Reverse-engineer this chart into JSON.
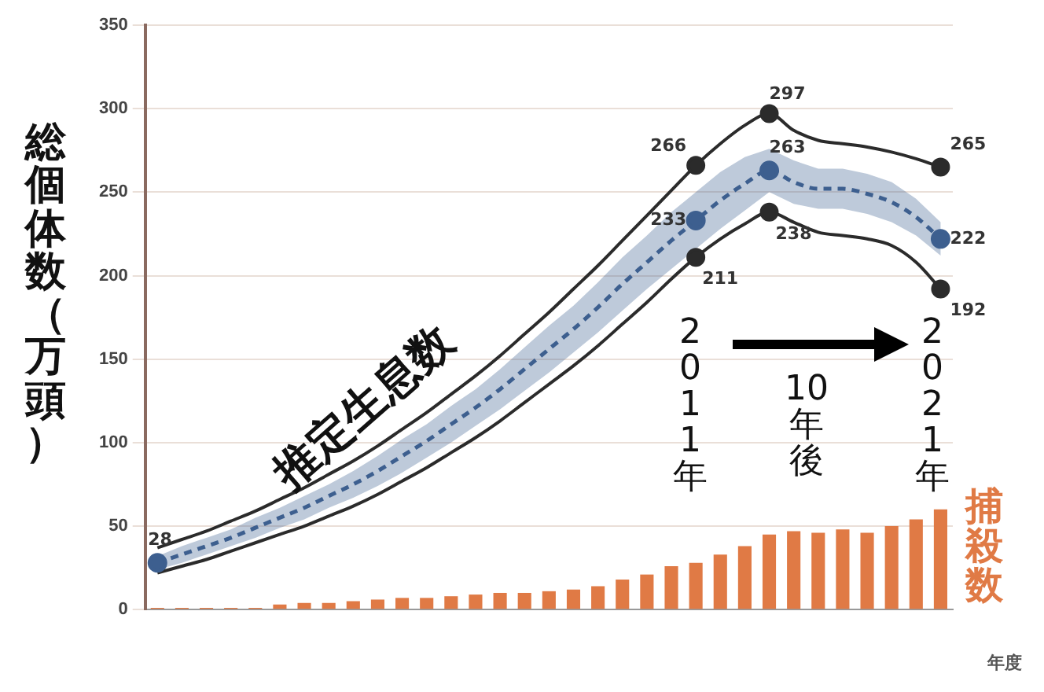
{
  "chart_data": {
    "type": "line",
    "ylabel": "総個体数（万頭）",
    "xlabel": "年度",
    "categories": [
      null,
      null,
      null,
      null,
      null,
      null,
      null,
      null,
      null,
      null,
      null,
      null,
      null,
      null,
      null,
      null,
      null,
      null,
      null,
      null,
      null,
      null,
      null,
      null,
      null,
      null,
      null,
      null,
      null,
      null,
      null,
      null,
      null
    ],
    "ylim": [
      0,
      350
    ],
    "yticks": [
      0,
      50,
      100,
      150,
      200,
      250,
      300,
      350
    ],
    "grid": "y",
    "series": [
      {
        "type": "bar",
        "name": "捕殺数",
        "color": "#e07a45",
        "values": [
          1,
          1,
          1,
          1,
          1,
          3,
          4,
          4,
          5,
          6,
          7,
          7,
          8,
          9,
          10,
          10,
          11,
          12,
          14,
          18,
          21,
          26,
          28,
          33,
          38,
          45,
          47,
          46,
          48,
          46,
          50,
          54,
          60
        ]
      },
      {
        "color": "#2b2b2b",
        "values": [
          37,
          42,
          47,
          53,
          59,
          66,
          73,
          81,
          89,
          98,
          108,
          118,
          129,
          140,
          152,
          165,
          178,
          192,
          206,
          221,
          236,
          251,
          266,
          279,
          290,
          297,
          287,
          281,
          279,
          277,
          274,
          270,
          265
        ],
        "value_labels": [
          null,
          null,
          null,
          null,
          null,
          null,
          null,
          null,
          null,
          null,
          null,
          null,
          null,
          null,
          null,
          null,
          null,
          null,
          null,
          null,
          null,
          null,
          "266",
          null,
          null,
          "297",
          null,
          null,
          null,
          null,
          null,
          null,
          "265"
        ]
      },
      {
        "name": "推定生息数",
        "color": "#3d5f8f",
        "line_style": "dashed",
        "values": [
          28,
          33,
          38,
          43,
          49,
          55,
          61,
          68,
          75,
          83,
          92,
          101,
          111,
          121,
          132,
          144,
          156,
          168,
          181,
          195,
          208,
          221,
          233,
          245,
          255,
          263,
          256,
          252,
          252,
          249,
          244,
          235,
          222
        ],
        "lower": [
          24,
          28,
          33,
          38,
          43,
          49,
          54,
          61,
          67,
          74,
          82,
          91,
          100,
          110,
          120,
          131,
          142,
          154,
          166,
          179,
          192,
          204,
          216,
          228,
          239,
          250,
          243,
          240,
          240,
          237,
          232,
          224,
          212
        ],
        "upper": [
          32,
          38,
          43,
          48,
          55,
          61,
          68,
          75,
          83,
          92,
          102,
          111,
          122,
          132,
          144,
          157,
          170,
          182,
          196,
          211,
          224,
          238,
          250,
          262,
          271,
          276,
          269,
          264,
          264,
          261,
          256,
          246,
          232
        ],
        "value_labels": [
          "28",
          null,
          null,
          null,
          null,
          null,
          null,
          null,
          null,
          null,
          null,
          null,
          null,
          null,
          null,
          null,
          null,
          null,
          null,
          null,
          null,
          null,
          "233",
          null,
          null,
          "263",
          null,
          null,
          null,
          null,
          null,
          null,
          "222"
        ]
      },
      {
        "color": "#2b2b2b",
        "values": [
          22,
          26,
          30,
          35,
          40,
          45,
          50,
          56,
          62,
          69,
          77,
          85,
          94,
          103,
          113,
          124,
          135,
          146,
          158,
          171,
          184,
          198,
          211,
          222,
          231,
          238,
          232,
          226,
          224,
          222,
          218,
          208,
          192
        ],
        "value_labels": [
          null,
          null,
          null,
          null,
          null,
          null,
          null,
          null,
          null,
          null,
          null,
          null,
          null,
          null,
          null,
          null,
          null,
          null,
          null,
          null,
          null,
          null,
          "211",
          null,
          null,
          "238",
          null,
          null,
          null,
          null,
          null,
          null,
          "192"
        ]
      }
    ],
    "annotations": [
      "2011年",
      "10年後",
      "2021年"
    ]
  }
}
